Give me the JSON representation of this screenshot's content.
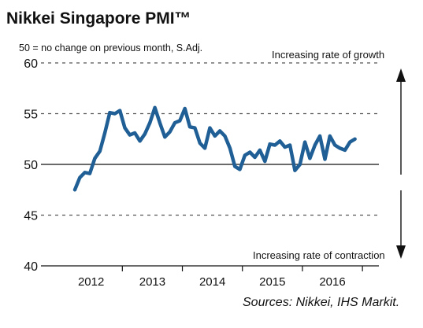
{
  "chart_data": {
    "type": "line",
    "title": "Nikkei Singapore PMI™",
    "subtitle": "50 = no change on previous month, S.Adj.",
    "annotation_top": "Increasing rate of growth",
    "annotation_bottom": "Increasing rate of contraction",
    "source": "Sources: Nikkei, IHS Markit.",
    "ylim": [
      40,
      60
    ],
    "yticks": [
      40,
      45,
      50,
      55,
      60
    ],
    "year_labels": [
      "2012",
      "2013",
      "2014",
      "2015",
      "2016"
    ],
    "grid": "dashed horizontal at 45, 55, 60; solid line at 50",
    "colors": {
      "line": "#1f5f95",
      "grid": "#555555",
      "text": "#111111"
    },
    "series": [
      {
        "start": "2012-03",
        "values": [
          47.5,
          48.7,
          49.2,
          49.1,
          50.6,
          51.3,
          53.1,
          55.1,
          55.0,
          55.3,
          53.6,
          52.9,
          53.1,
          52.3,
          53.0,
          54.1,
          55.6,
          54.1,
          52.7,
          53.2,
          54.1,
          54.3,
          55.5,
          53.7,
          53.6,
          52.1,
          51.6,
          53.6,
          52.8,
          53.3,
          52.8,
          51.6,
          49.8,
          49.5,
          50.9,
          51.2,
          50.7,
          51.4,
          50.3,
          52.0,
          51.9,
          52.3,
          51.7,
          51.9,
          49.4,
          50.0,
          52.2,
          50.6,
          51.9,
          52.8,
          50.5,
          52.8,
          51.9,
          51.6,
          51.4,
          52.2,
          52.5
        ]
      }
    ]
  }
}
